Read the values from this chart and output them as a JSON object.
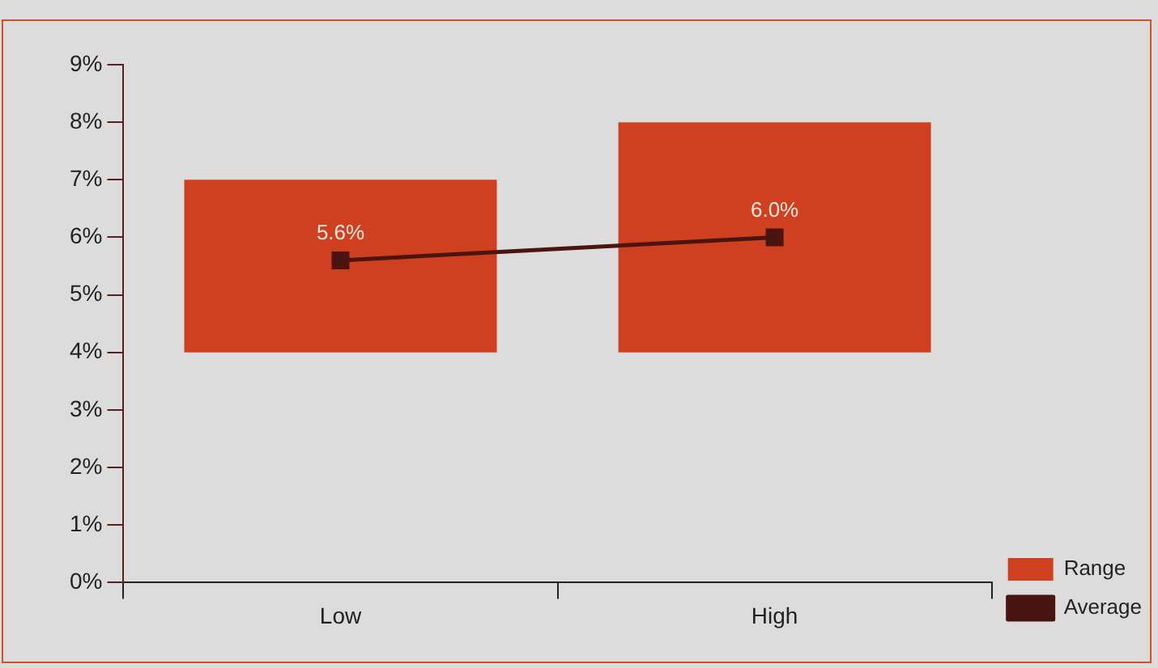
{
  "chart_data": {
    "type": "bar",
    "categories": [
      "Low",
      "High"
    ],
    "series": [
      {
        "name": "Range",
        "color": "#cf4020",
        "base": [
          4,
          4
        ],
        "values": [
          3,
          4
        ]
      },
      {
        "name": "Average",
        "type": "line",
        "color": "#4a1410",
        "values": [
          5.6,
          6.0
        ],
        "value_labels": [
          "5.6%",
          "6.0%"
        ],
        "marker": "square"
      }
    ],
    "ylim": [
      0,
      9
    ],
    "yticks": [
      {
        "value": 0,
        "label": "0%"
      },
      {
        "value": 1,
        "label": "1%"
      },
      {
        "value": 2,
        "label": "2%"
      },
      {
        "value": 3,
        "label": "3%"
      },
      {
        "value": 4,
        "label": "4%"
      },
      {
        "value": 5,
        "label": "5%"
      },
      {
        "value": 6,
        "label": "6%"
      },
      {
        "value": 7,
        "label": "7%"
      },
      {
        "value": 8,
        "label": "8%"
      },
      {
        "value": 9,
        "label": "9%"
      }
    ],
    "grid": false,
    "legend": "bottom right"
  }
}
